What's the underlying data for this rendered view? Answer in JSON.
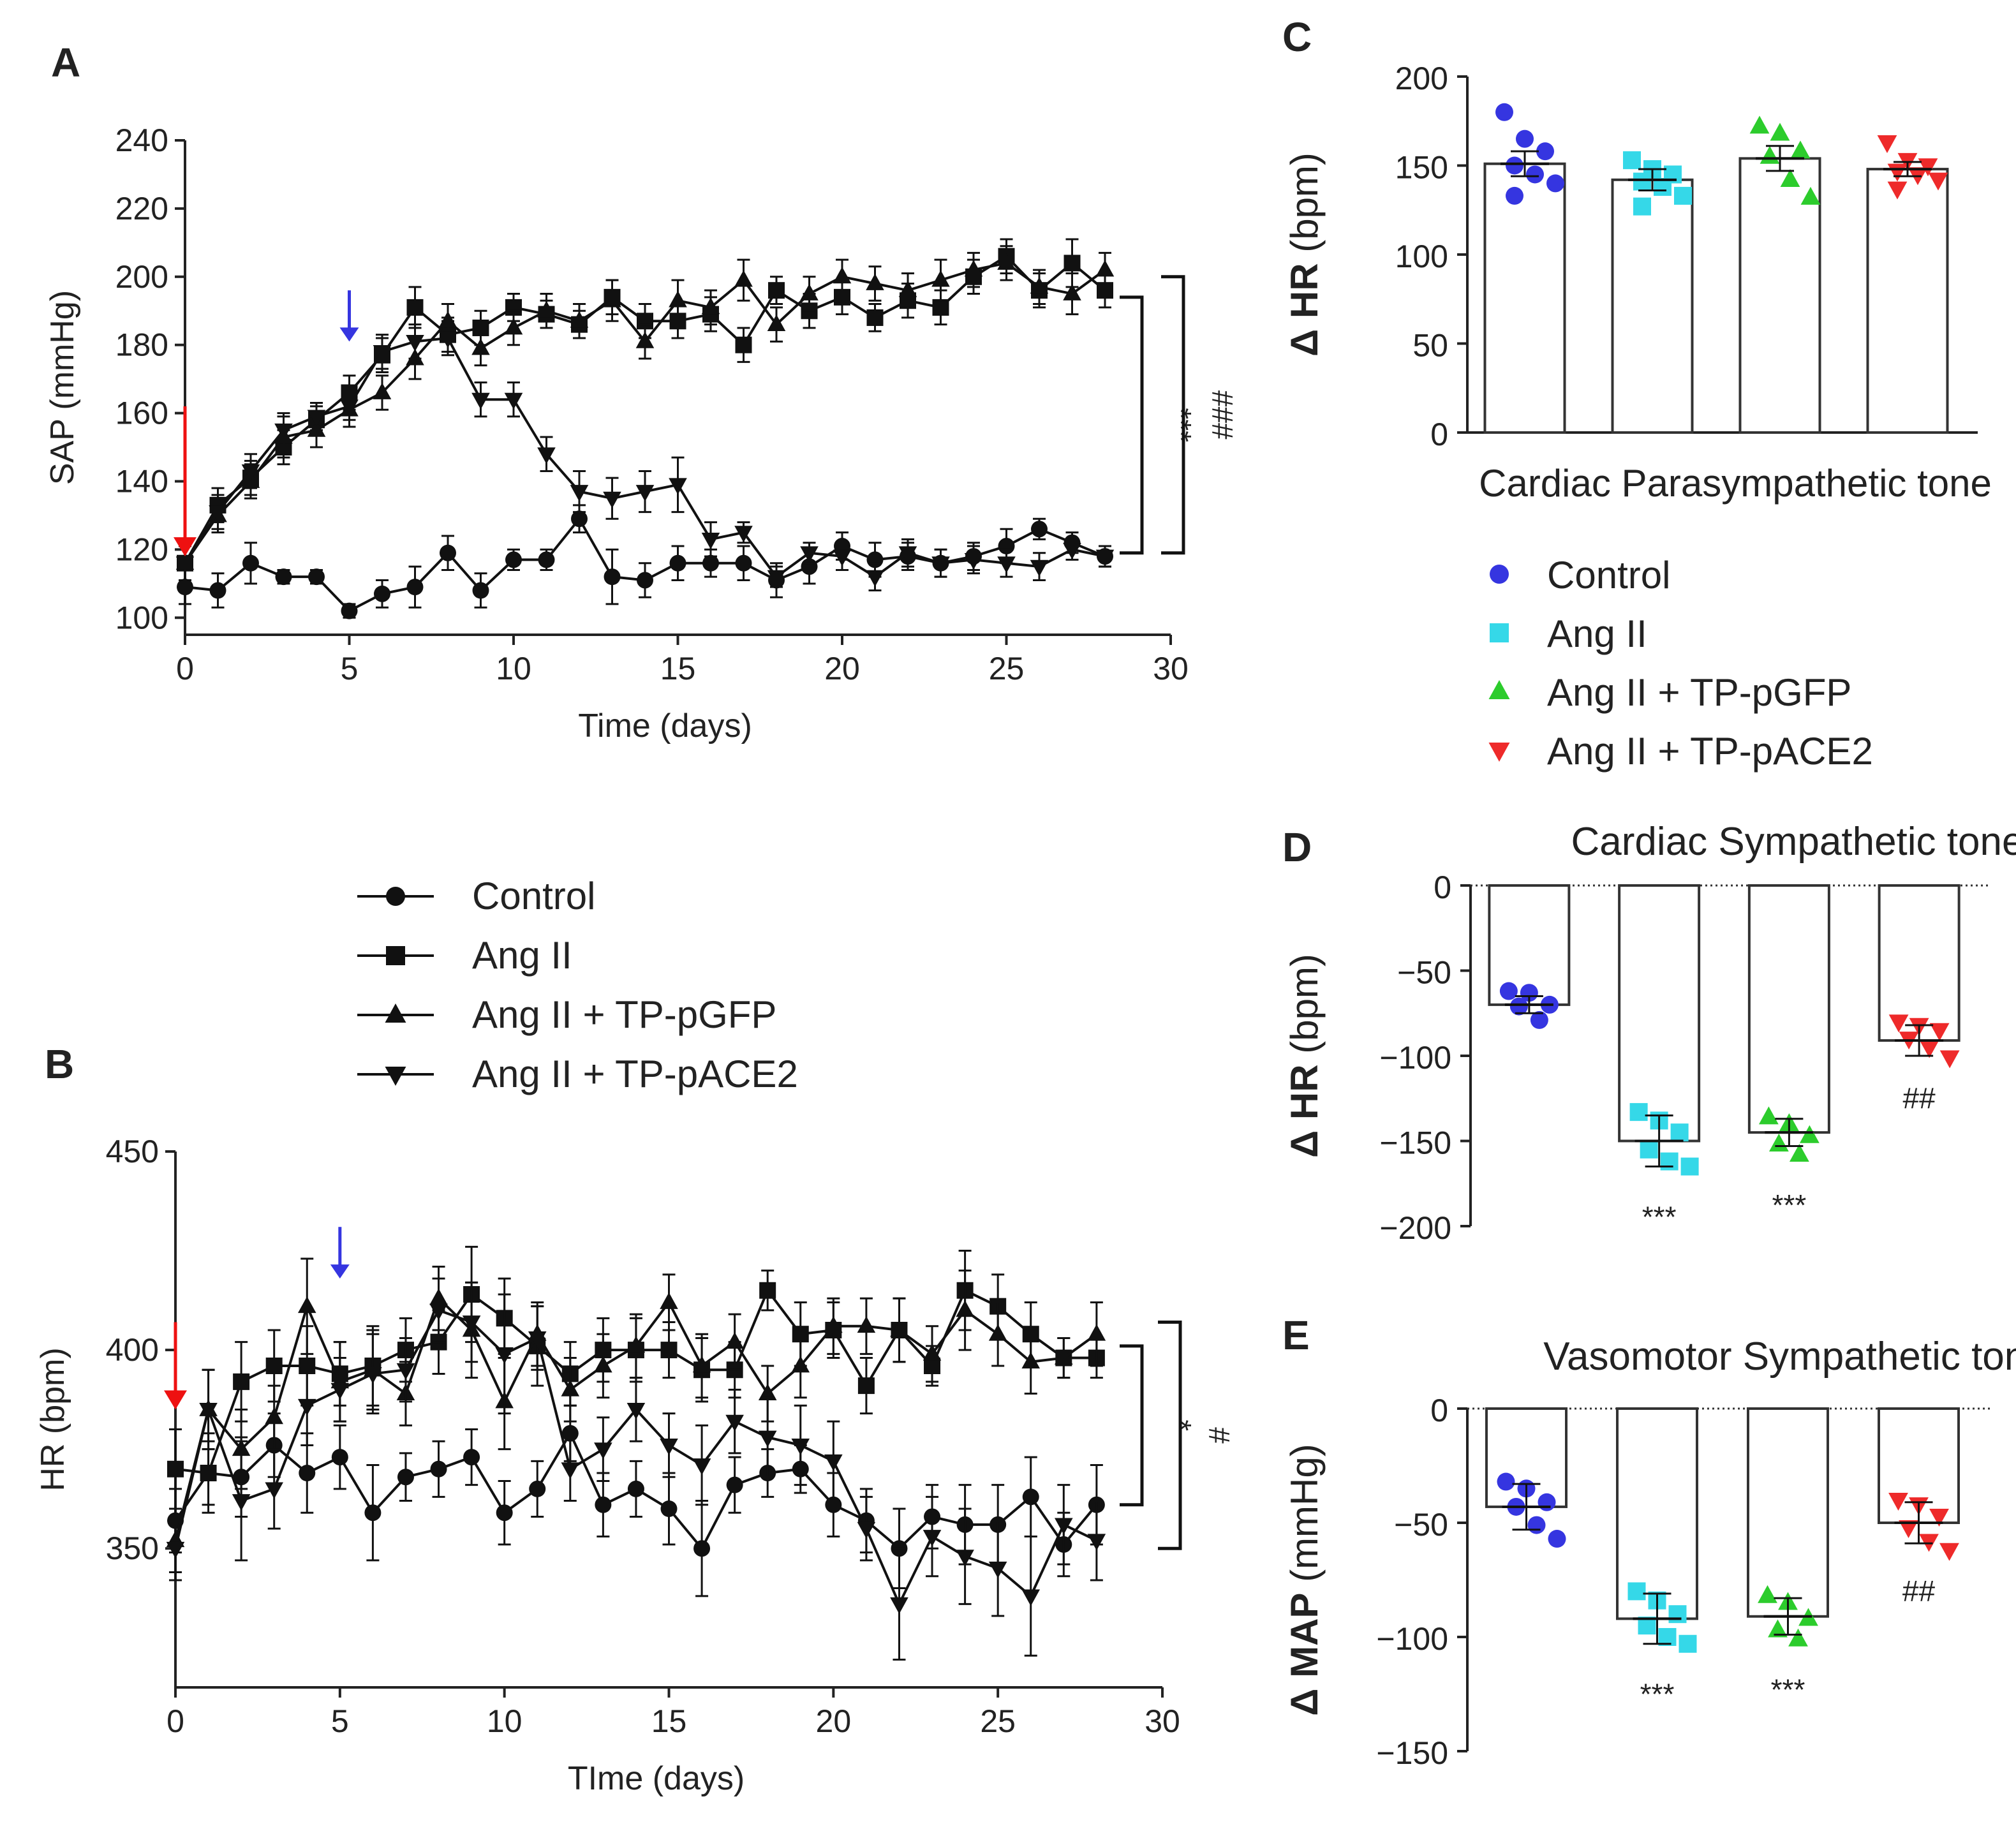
{
  "series_styles": [
    {
      "name": "Control",
      "marker": "circle",
      "color": "#3535e0"
    },
    {
      "name": "Ang II",
      "marker": "square",
      "color": "#35d8e8"
    },
    {
      "name": "Ang II + TP-pGFP",
      "marker": "triangle-up",
      "color": "#2ccc2c"
    },
    {
      "name": "Ang II + TP-pACE2",
      "marker": "triangle-down",
      "color": "#ee2a2a"
    }
  ],
  "arrow_colors": {
    "angII_start": "#ee1111",
    "treatment": "#3535e0"
  },
  "chart_data": [
    {
      "id": "A",
      "panel_label": "A",
      "type": "line",
      "xlabel": "Time (days)",
      "ylabel": "SAP (mmHg)",
      "xlim": [
        0,
        30
      ],
      "ylim": [
        95,
        240
      ],
      "xticks": [
        0,
        5,
        10,
        15,
        20,
        25,
        30
      ],
      "yticks": [
        100,
        120,
        140,
        160,
        180,
        200,
        220,
        240
      ],
      "x": [
        0,
        1,
        2,
        3,
        4,
        5,
        6,
        7,
        8,
        9,
        10,
        11,
        12,
        13,
        14,
        15,
        16,
        17,
        18,
        19,
        20,
        21,
        22,
        23,
        24,
        25,
        26,
        27,
        28
      ],
      "series": [
        {
          "name": "Control",
          "values": [
            109,
            108,
            116,
            112,
            112,
            102,
            107,
            109,
            119,
            108,
            117,
            117,
            129,
            112,
            111,
            116,
            116,
            116,
            111,
            115,
            121,
            117,
            118,
            116,
            118,
            121,
            126,
            122,
            118
          ],
          "errors": [
            5,
            5,
            6,
            2,
            2,
            2,
            4,
            6,
            5,
            5,
            3,
            3,
            4,
            8,
            5,
            5,
            4,
            5,
            5,
            5,
            4,
            5,
            4,
            4,
            4,
            5,
            3,
            3,
            3
          ]
        },
        {
          "name": "Ang II",
          "values": [
            116,
            133,
            141,
            150,
            158,
            166,
            177,
            191,
            183,
            185,
            191,
            189,
            186,
            194,
            187,
            187,
            189,
            180,
            196,
            190,
            194,
            188,
            193,
            191,
            200,
            206,
            196,
            204,
            196
          ],
          "errors": [
            5,
            5,
            5,
            5,
            4,
            5,
            5,
            6,
            5,
            5,
            4,
            4,
            4,
            5,
            5,
            5,
            5,
            5,
            4,
            5,
            5,
            4,
            5,
            5,
            5,
            5,
            5,
            7,
            5
          ]
        },
        {
          "name": "Ang II + TP-pGFP",
          "values": [
            116,
            130,
            140,
            153,
            155,
            161,
            166,
            176,
            187,
            179,
            185,
            190,
            187,
            193,
            181,
            193,
            191,
            199,
            186,
            195,
            200,
            198,
            196,
            199,
            202,
            204,
            197,
            195,
            202
          ],
          "errors": [
            5,
            5,
            5,
            6,
            5,
            5,
            5,
            6,
            5,
            5,
            5,
            5,
            5,
            6,
            5,
            6,
            5,
            6,
            5,
            5,
            5,
            5,
            5,
            6,
            5,
            5,
            5,
            6,
            5
          ]
        },
        {
          "name": "Ang II + TP-pACE2",
          "values": [
            116,
            131,
            143,
            155,
            159,
            162,
            178,
            181,
            182,
            164,
            164,
            148,
            137,
            135,
            137,
            139,
            123,
            125,
            112,
            119,
            118,
            112,
            119,
            116,
            117,
            116,
            115,
            120,
            118
          ],
          "errors": [
            5,
            5,
            5,
            5,
            4,
            4,
            5,
            5,
            5,
            5,
            5,
            5,
            6,
            6,
            6,
            8,
            5,
            3,
            3,
            3,
            4,
            4,
            4,
            4,
            4,
            4,
            4,
            3,
            3
          ]
        }
      ],
      "annotations": {
        "bracket_inner": "***",
        "bracket_outer": "###"
      }
    },
    {
      "id": "B",
      "panel_label": "B",
      "type": "line",
      "xlabel": "TIme (days)",
      "ylabel": "HR (bpm)",
      "xlim": [
        0,
        30
      ],
      "ylim": [
        315,
        450
      ],
      "xticks": [
        0,
        5,
        10,
        15,
        20,
        25,
        30
      ],
      "yticks": [
        350,
        400,
        450
      ],
      "x": [
        0,
        1,
        2,
        3,
        4,
        5,
        6,
        7,
        8,
        9,
        10,
        11,
        12,
        13,
        14,
        15,
        16,
        17,
        18,
        19,
        20,
        21,
        22,
        23,
        24,
        25,
        26,
        27,
        28
      ],
      "series": [
        {
          "name": "Control",
          "values": [
            357,
            369,
            368,
            376,
            369,
            373,
            359,
            368,
            370,
            373,
            359,
            365,
            379,
            361,
            365,
            360,
            350,
            366,
            369,
            370,
            361,
            357,
            350,
            358,
            356,
            356,
            363,
            351,
            361
          ],
          "errors": [
            8,
            8,
            10,
            8,
            10,
            8,
            12,
            6,
            7,
            7,
            8,
            7,
            7,
            8,
            7,
            9,
            12,
            7,
            6,
            6,
            8,
            8,
            10,
            8,
            10,
            10,
            10,
            8,
            10
          ]
        },
        {
          "name": "Ang II",
          "values": [
            370,
            369,
            392,
            396,
            396,
            394,
            396,
            400,
            402,
            414,
            408,
            401,
            394,
            400,
            400,
            400,
            395,
            395,
            415,
            404,
            405,
            391,
            405,
            396,
            415,
            411,
            404,
            398,
            398
          ],
          "errors": [
            10,
            10,
            10,
            9,
            10,
            8,
            10,
            8,
            8,
            12,
            10,
            10,
            8,
            8,
            8,
            7,
            8,
            7,
            5,
            8,
            7,
            7,
            8,
            5,
            10,
            8,
            8,
            5,
            5
          ]
        },
        {
          "name": "Ang II + TP-pGFP",
          "values": [
            352,
            385,
            375,
            383,
            411,
            392,
            395,
            389,
            413,
            405,
            387,
            404,
            390,
            396,
            401,
            412,
            396,
            402,
            389,
            396,
            406,
            406,
            405,
            399,
            410,
            404,
            397,
            398,
            404
          ],
          "errors": [
            8,
            10,
            10,
            8,
            12,
            10,
            10,
            8,
            8,
            12,
            12,
            8,
            8,
            8,
            8,
            7,
            8,
            7,
            7,
            8,
            7,
            7,
            8,
            7,
            10,
            8,
            8,
            5,
            8
          ]
        },
        {
          "name": "Ang II + TP-pACE2",
          "values": [
            350,
            385,
            362,
            365,
            386,
            390,
            394,
            395,
            410,
            407,
            399,
            403,
            370,
            375,
            385,
            376,
            371,
            382,
            378,
            376,
            372,
            355,
            336,
            353,
            348,
            345,
            338,
            356,
            352
          ],
          "errors": [
            8,
            10,
            15,
            10,
            10,
            8,
            10,
            8,
            8,
            10,
            15,
            8,
            8,
            8,
            8,
            8,
            10,
            8,
            10,
            10,
            10,
            8,
            14,
            10,
            12,
            12,
            15,
            10,
            10
          ]
        }
      ],
      "annotations": {
        "bracket_inner": "*",
        "bracket_outer": "#"
      }
    },
    {
      "id": "C",
      "panel_label": "C",
      "type": "bar",
      "xlabel": "Cardiac Parasympathetic tone",
      "title": "",
      "ylabel_bold": "Δ HR",
      "ylabel_rest": "(bpm)",
      "ylim": [
        0,
        200
      ],
      "yticks": [
        0,
        50,
        100,
        150,
        200
      ],
      "categories": [
        "Control",
        "Ang II",
        "Ang II + TP-pGFP",
        "Ang II + TP-pACE2"
      ],
      "values": [
        151,
        142,
        154,
        148
      ],
      "errors": [
        7,
        6,
        7,
        4
      ],
      "points": [
        [
          180,
          165,
          158,
          150,
          145,
          140,
          133
        ],
        [
          153,
          148,
          145,
          141,
          138,
          133,
          127
        ],
        [
          172,
          168,
          158,
          155,
          142,
          132
        ],
        [
          163,
          153,
          150,
          147,
          145,
          142,
          137
        ]
      ],
      "significance": [
        "",
        "",
        "",
        ""
      ]
    },
    {
      "id": "D",
      "panel_label": "D",
      "type": "bar",
      "xlabel": "",
      "title": "Cardiac Sympathetic tone",
      "ylabel_bold": "Δ HR",
      "ylabel_rest": "(bpm)",
      "ylim": [
        -200,
        0
      ],
      "yticks": [
        -200,
        -150,
        -100,
        -50,
        0
      ],
      "categories": [
        "Control",
        "Ang II",
        "Ang II + TP-pGFP",
        "Ang II + TP-pACE2"
      ],
      "values": [
        -70,
        -150,
        -145,
        -91
      ],
      "errors": [
        5,
        15,
        8,
        9
      ],
      "points": [
        [
          -62,
          -63,
          -70,
          -71,
          -79
        ],
        [
          -133,
          -138,
          -145,
          -155,
          -162,
          -165
        ],
        [
          -136,
          -140,
          -147,
          -152,
          -158
        ],
        [
          -80,
          -82,
          -85,
          -90,
          -95,
          -101
        ]
      ],
      "significance": [
        "",
        "***",
        "***",
        "##"
      ]
    },
    {
      "id": "E",
      "panel_label": "E",
      "type": "bar",
      "xlabel": "",
      "title": "Vasomotor Sympathetic tone",
      "ylabel_bold": "Δ MAP",
      "ylabel_rest": "(mmHg)",
      "ylim": [
        -150,
        0
      ],
      "yticks": [
        -150,
        -100,
        -50,
        0
      ],
      "categories": [
        "Control",
        "Ang II",
        "Ang II + TP-pGFP",
        "Ang II + TP-pACE2"
      ],
      "values": [
        -43,
        -92,
        -91,
        -50
      ],
      "errors": [
        10,
        11,
        8,
        9
      ],
      "points": [
        [
          -32,
          -35,
          -41,
          -43,
          -51,
          -57
        ],
        [
          -80,
          -84,
          -90,
          -95,
          -100,
          -103
        ],
        [
          -82,
          -85,
          -92,
          -97,
          -101
        ],
        [
          -40,
          -42,
          -47,
          -52,
          -58,
          -62
        ]
      ],
      "significance": [
        "",
        "***",
        "***",
        "##"
      ]
    }
  ]
}
